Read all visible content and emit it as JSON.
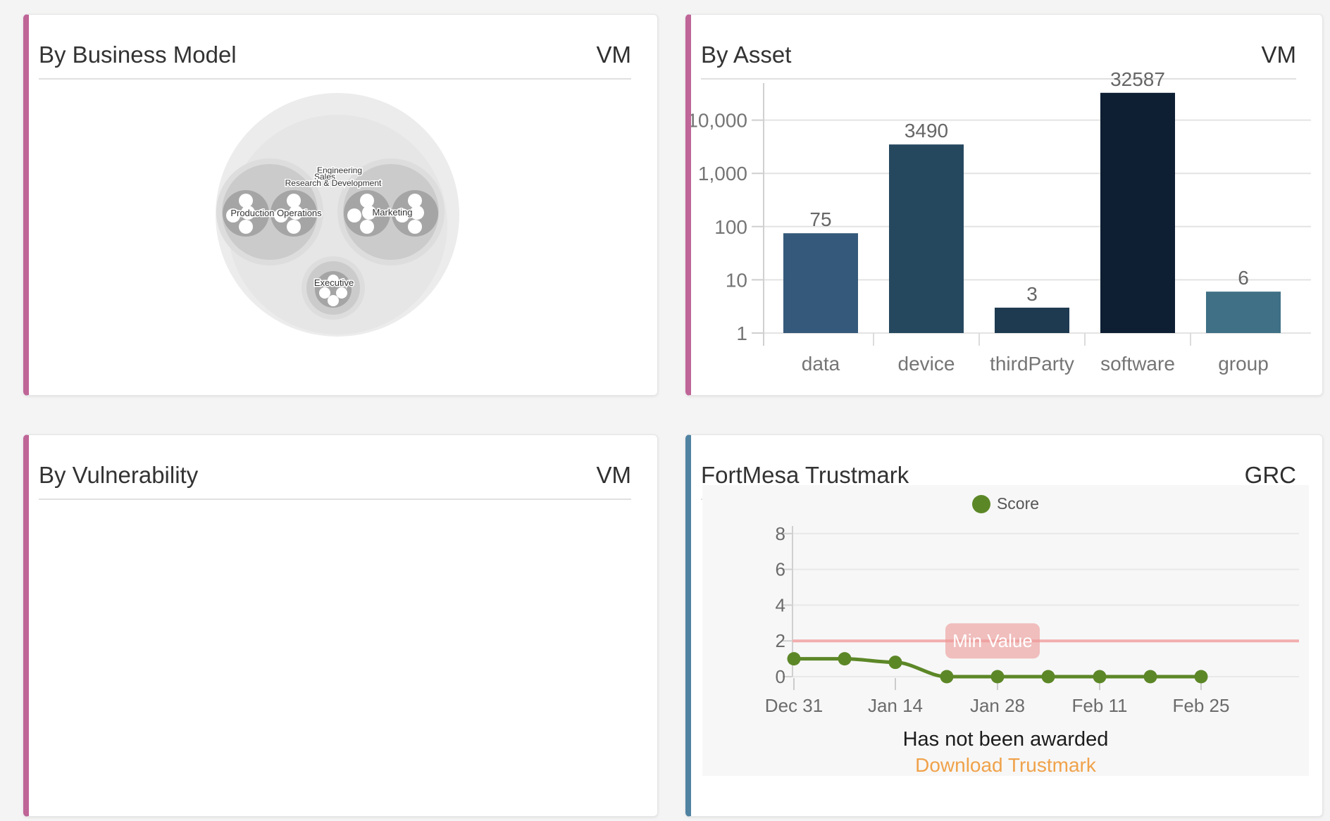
{
  "cards": {
    "business_model": {
      "title": "By Business Model",
      "tag": "VM"
    },
    "asset": {
      "title": "By Asset",
      "tag": "VM"
    },
    "vulnerability": {
      "title": "By Vulnerability",
      "tag": "VM"
    },
    "trustmark": {
      "title": "FortMesa Trustmark",
      "tag": "GRC"
    }
  },
  "colors": {
    "vm_accent": "#bf6597",
    "grc_accent": "#5083a1",
    "link_orange": "#f0a24a",
    "score_green": "#5c8727",
    "threshold_pink": "#f2aeae"
  },
  "trustmark": {
    "status": "Has not been awarded",
    "link": "Download Trustmark"
  },
  "chart_data": [
    {
      "type": "bubble",
      "title": "By Business Model",
      "rings": [
        "Engineering",
        "Sales",
        "Research & Development"
      ],
      "clusters": [
        {
          "label": "Production Operations",
          "member_groups": 2,
          "dots_per_group": 4
        },
        {
          "label": "Marketing",
          "member_groups": 2,
          "dots_per_group": 4
        },
        {
          "label": "Executive",
          "member_groups": 1,
          "dots_per_group": 4
        }
      ]
    },
    {
      "type": "bar",
      "title": "By Asset",
      "categories": [
        "data",
        "device",
        "thirdParty",
        "software",
        "group"
      ],
      "values": [
        75,
        3490,
        3,
        32587,
        6
      ],
      "bar_colors": [
        "#35597a",
        "#26485f",
        "#1e3a50",
        "#0e1f33",
        "#3f7086"
      ],
      "yscale": "log",
      "ylim": [
        1,
        100000
      ],
      "yticks": [
        {
          "value": 1,
          "label": "1"
        },
        {
          "value": 10,
          "label": "10"
        },
        {
          "value": 100,
          "label": "100"
        },
        {
          "value": 1000,
          "label": "1,000"
        },
        {
          "value": 10000,
          "label": "10,000"
        }
      ]
    },
    {
      "type": "line",
      "title": "FortMesa Trustmark",
      "legend": "Score",
      "line_color": "#5c8727",
      "x": [
        "Dec 31",
        "Jan 7",
        "Jan 14",
        "Jan 21",
        "Jan 28",
        "Feb 4",
        "Feb 11",
        "Feb 18",
        "Feb 25"
      ],
      "values": [
        1,
        1,
        0.8,
        0,
        0,
        0,
        0,
        0,
        0
      ],
      "xtick_indices": [
        0,
        2,
        4,
        6,
        8
      ],
      "yticks": [
        0,
        2,
        4,
        6,
        8
      ],
      "ylim": [
        0,
        8
      ],
      "grid": true,
      "legend_position": "top-center",
      "threshold": {
        "value": 2,
        "label": "Min Value",
        "line_color": "#f2aeae",
        "badge_color": "#ec9b99"
      }
    }
  ]
}
